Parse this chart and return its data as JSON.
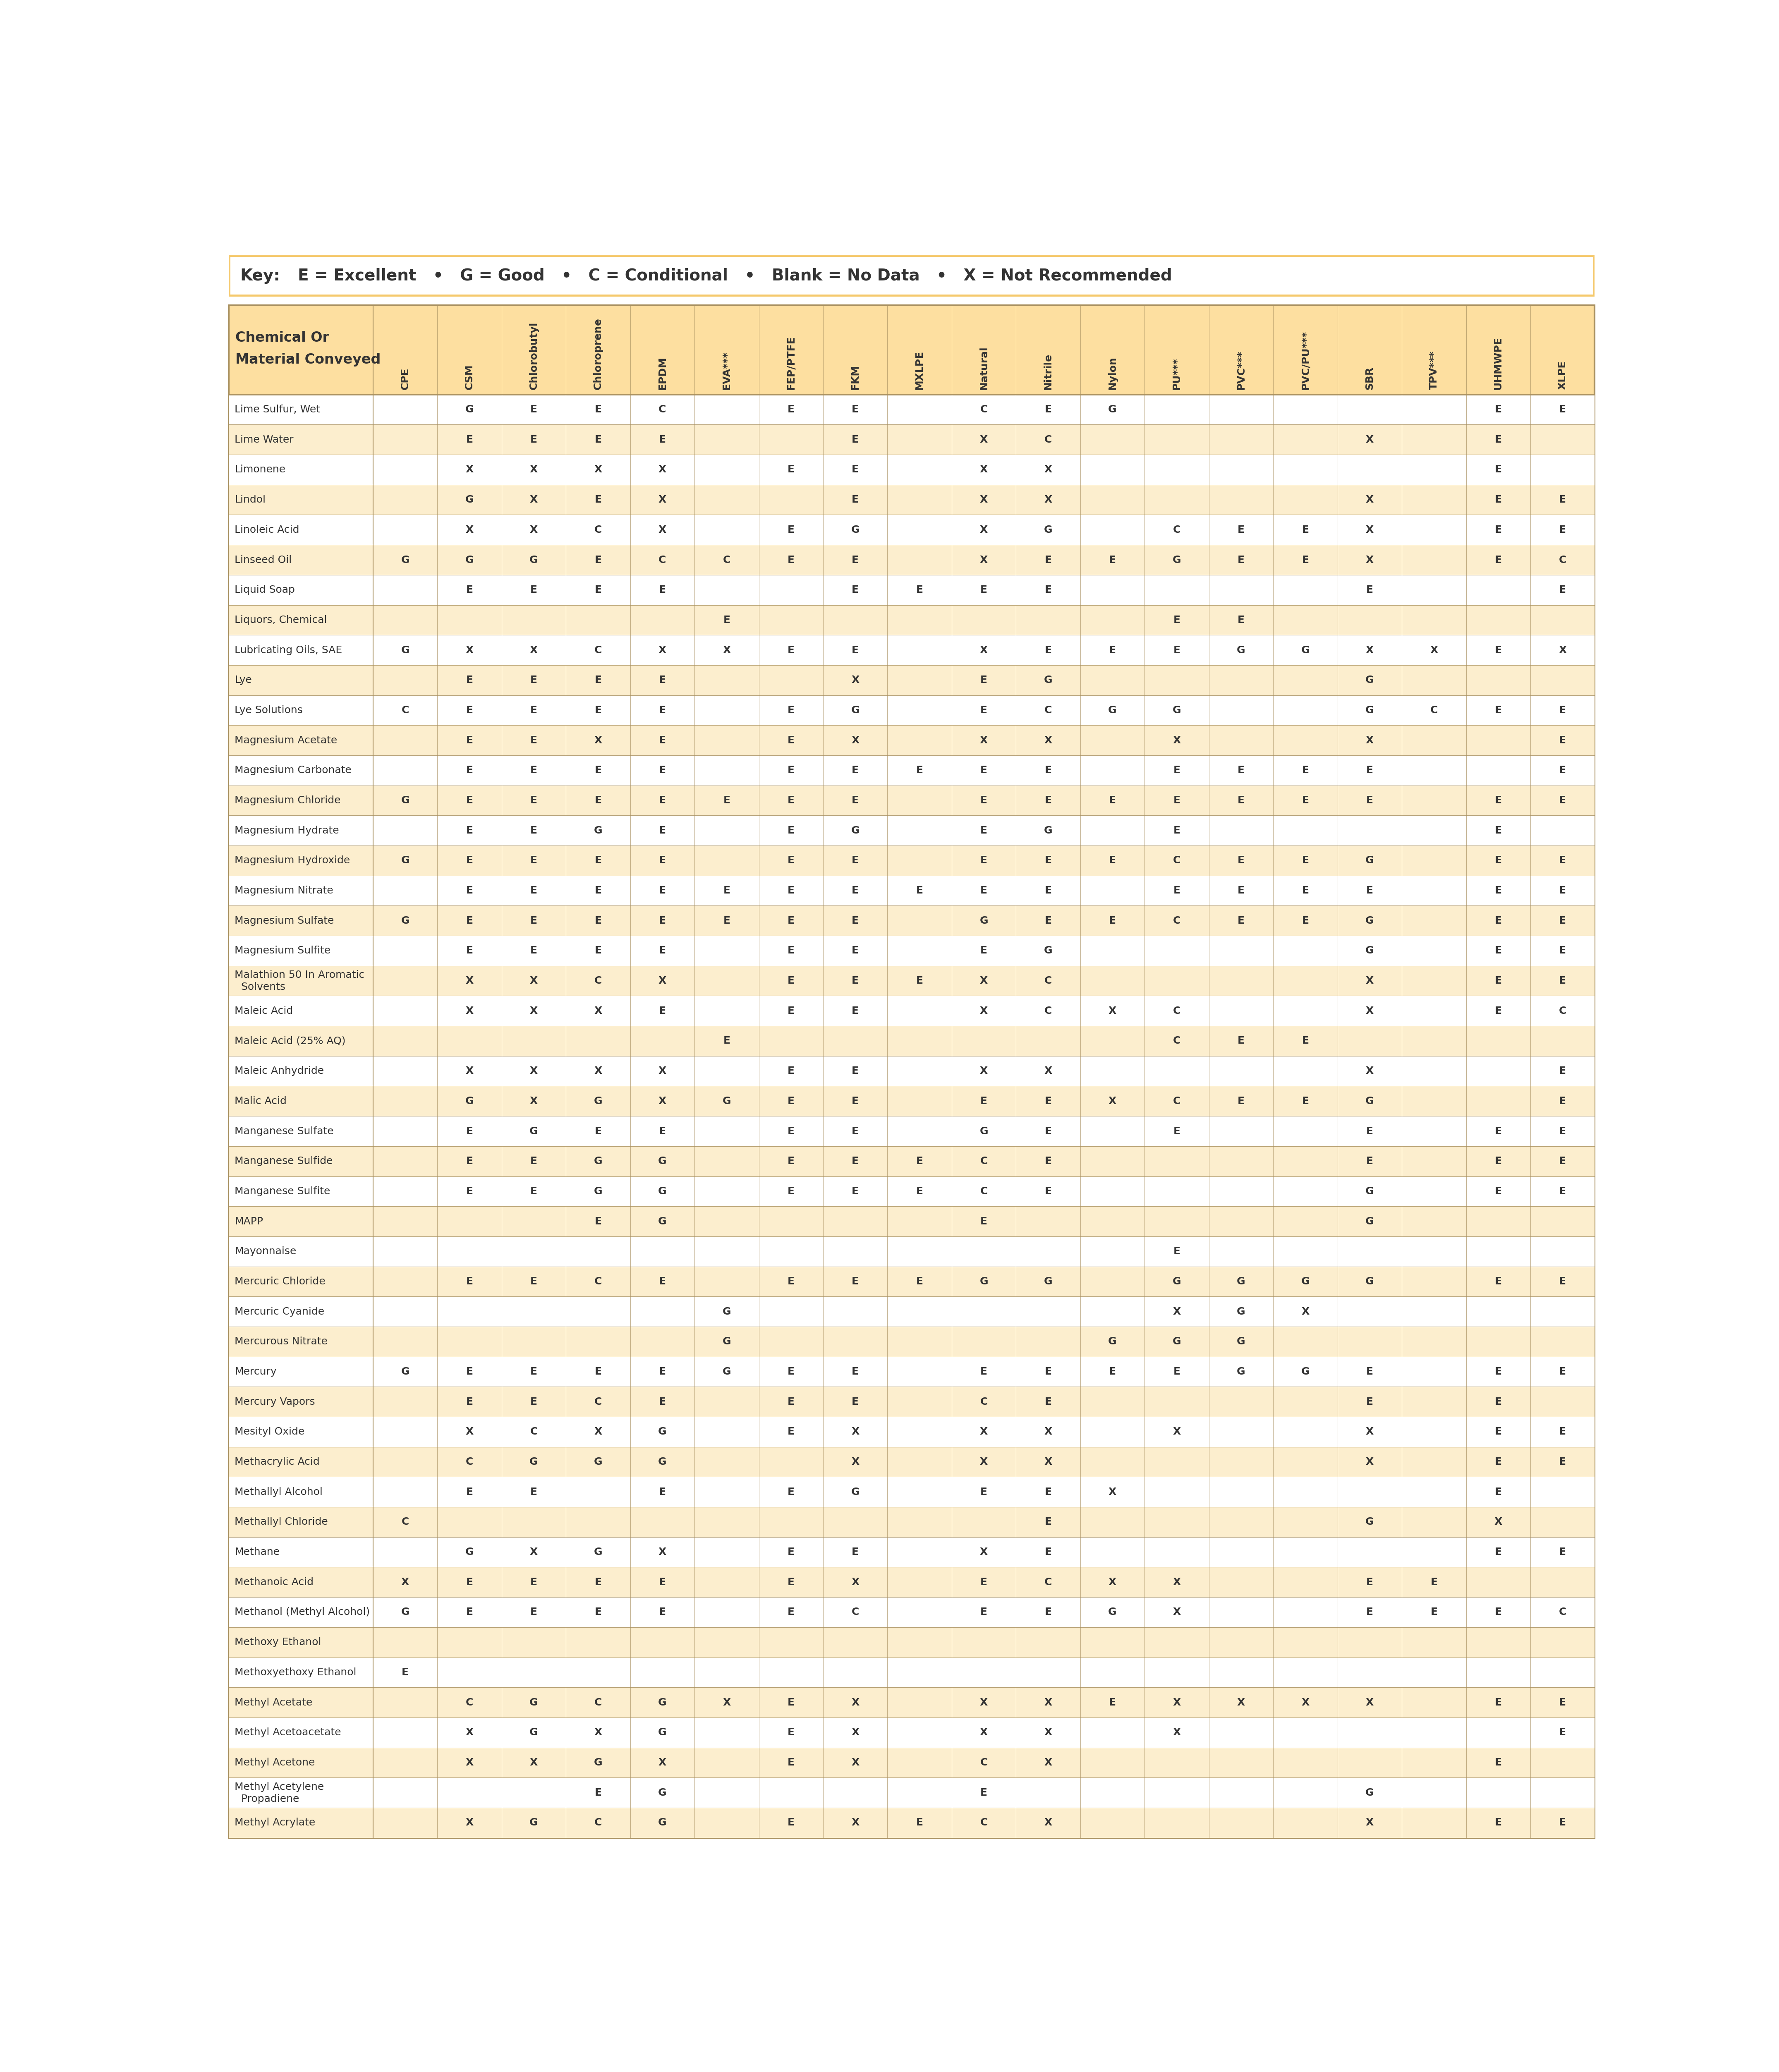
{
  "key_text_bold": "Key:",
  "key_text_rest": "  E = Excellent   •   G = Good   •   C = Conditional   •   Blank = No Data   •   X = Not Recommended",
  "header_col_line1": "Chemical Or",
  "header_col_line2": "Material Conveyed",
  "columns": [
    "CPE",
    "CSM",
    "Chlorobutyl",
    "Chloroprene",
    "EPDM",
    "EVA***",
    "FEP/PTFE",
    "FKM",
    "MXLPE",
    "Natural",
    "Nitrile",
    "Nylon",
    "PU***",
    "PVC***",
    "PVC/PU***",
    "SBR",
    "TPV***",
    "UHMWPE",
    "XLPE"
  ],
  "rows": [
    {
      "chemical": "Lime Sulfur, Wet",
      "data": [
        "",
        "G",
        "E",
        "E",
        "C",
        "",
        "E",
        "E",
        "",
        "C",
        "E",
        "G",
        "",
        "",
        "",
        "",
        "",
        "E",
        "E"
      ]
    },
    {
      "chemical": "Lime Water",
      "data": [
        "",
        "E",
        "E",
        "E",
        "E",
        "",
        "",
        "E",
        "",
        "X",
        "C",
        "",
        "",
        "",
        "",
        "X",
        "",
        "E",
        ""
      ]
    },
    {
      "chemical": "Limonene",
      "data": [
        "",
        "X",
        "X",
        "X",
        "X",
        "",
        "E",
        "E",
        "",
        "X",
        "X",
        "",
        "",
        "",
        "",
        "",
        "",
        "E",
        ""
      ]
    },
    {
      "chemical": "Lindol",
      "data": [
        "",
        "G",
        "X",
        "E",
        "X",
        "",
        "",
        "E",
        "",
        "X",
        "X",
        "",
        "",
        "",
        "",
        "X",
        "",
        "E",
        "E"
      ]
    },
    {
      "chemical": "Linoleic Acid",
      "data": [
        "",
        "X",
        "X",
        "C",
        "X",
        "",
        "E",
        "G",
        "",
        "X",
        "G",
        "",
        "C",
        "E",
        "E",
        "X",
        "",
        "E",
        "E"
      ]
    },
    {
      "chemical": "Linseed Oil",
      "data": [
        "G",
        "G",
        "G",
        "E",
        "C",
        "C",
        "E",
        "E",
        "",
        "X",
        "E",
        "E",
        "G",
        "E",
        "E",
        "X",
        "",
        "E",
        "C"
      ]
    },
    {
      "chemical": "Liquid Soap",
      "data": [
        "",
        "E",
        "E",
        "E",
        "E",
        "",
        "",
        "E",
        "E",
        "E",
        "E",
        "",
        "",
        "",
        "",
        "E",
        "",
        "",
        "E"
      ]
    },
    {
      "chemical": "Liquors, Chemical",
      "data": [
        "",
        "",
        "",
        "",
        "",
        "E",
        "",
        "",
        "",
        "",
        "",
        "",
        "E",
        "E",
        "",
        "",
        "",
        "",
        ""
      ]
    },
    {
      "chemical": "Lubricating Oils, SAE",
      "data": [
        "G",
        "X",
        "X",
        "C",
        "X",
        "X",
        "E",
        "E",
        "",
        "X",
        "E",
        "E",
        "E",
        "G",
        "G",
        "X",
        "X",
        "E",
        "X"
      ]
    },
    {
      "chemical": "Lye",
      "data": [
        "",
        "E",
        "E",
        "E",
        "E",
        "",
        "",
        "X",
        "",
        "E",
        "G",
        "",
        "",
        "",
        "",
        "G",
        "",
        "",
        ""
      ]
    },
    {
      "chemical": "Lye Solutions",
      "data": [
        "C",
        "E",
        "E",
        "E",
        "E",
        "",
        "E",
        "G",
        "",
        "E",
        "C",
        "G",
        "G",
        "",
        "",
        "G",
        "C",
        "E",
        "E"
      ]
    },
    {
      "chemical": "Magnesium Acetate",
      "data": [
        "",
        "E",
        "E",
        "X",
        "E",
        "",
        "E",
        "X",
        "",
        "X",
        "X",
        "",
        "X",
        "",
        "",
        "X",
        "",
        "",
        "E"
      ]
    },
    {
      "chemical": "Magnesium Carbonate",
      "data": [
        "",
        "E",
        "E",
        "E",
        "E",
        "",
        "E",
        "E",
        "E",
        "E",
        "E",
        "",
        "E",
        "E",
        "E",
        "E",
        "",
        "",
        "E"
      ]
    },
    {
      "chemical": "Magnesium Chloride",
      "data": [
        "G",
        "E",
        "E",
        "E",
        "E",
        "E",
        "E",
        "E",
        "",
        "E",
        "E",
        "E",
        "E",
        "E",
        "E",
        "E",
        "",
        "E",
        "E"
      ]
    },
    {
      "chemical": "Magnesium Hydrate",
      "data": [
        "",
        "E",
        "E",
        "G",
        "E",
        "",
        "E",
        "G",
        "",
        "E",
        "G",
        "",
        "E",
        "",
        "",
        "",
        "",
        "E",
        ""
      ]
    },
    {
      "chemical": "Magnesium Hydroxide",
      "data": [
        "G",
        "E",
        "E",
        "E",
        "E",
        "",
        "E",
        "E",
        "",
        "E",
        "E",
        "E",
        "C",
        "E",
        "E",
        "G",
        "",
        "E",
        "E"
      ]
    },
    {
      "chemical": "Magnesium Nitrate",
      "data": [
        "",
        "E",
        "E",
        "E",
        "E",
        "E",
        "E",
        "E",
        "E",
        "E",
        "E",
        "",
        "E",
        "E",
        "E",
        "E",
        "",
        "E",
        "E"
      ]
    },
    {
      "chemical": "Magnesium Sulfate",
      "data": [
        "G",
        "E",
        "E",
        "E",
        "E",
        "E",
        "E",
        "E",
        "",
        "G",
        "E",
        "E",
        "C",
        "E",
        "E",
        "G",
        "",
        "E",
        "E"
      ]
    },
    {
      "chemical": "Magnesium Sulfite",
      "data": [
        "",
        "E",
        "E",
        "E",
        "E",
        "",
        "E",
        "E",
        "",
        "E",
        "G",
        "",
        "",
        "",
        "",
        "G",
        "",
        "E",
        "E"
      ]
    },
    {
      "chemical": "Malathion 50 In Aromatic\n  Solvents",
      "multiline": true,
      "data": [
        "",
        "X",
        "X",
        "C",
        "X",
        "",
        "E",
        "E",
        "E",
        "X",
        "C",
        "",
        "",
        "",
        "",
        "X",
        "",
        "E",
        "E"
      ]
    },
    {
      "chemical": "Maleic Acid",
      "data": [
        "",
        "X",
        "X",
        "X",
        "E",
        "",
        "E",
        "E",
        "",
        "X",
        "C",
        "X",
        "C",
        "",
        "",
        "X",
        "",
        "E",
        "C"
      ]
    },
    {
      "chemical": "Maleic Acid (25% AQ)",
      "data": [
        "",
        "",
        "",
        "",
        "",
        "E",
        "",
        "",
        "",
        "",
        "",
        "",
        "C",
        "E",
        "E",
        "",
        "",
        "",
        ""
      ]
    },
    {
      "chemical": "Maleic Anhydride",
      "data": [
        "",
        "X",
        "X",
        "X",
        "X",
        "",
        "E",
        "E",
        "",
        "X",
        "X",
        "",
        "",
        "",
        "",
        "X",
        "",
        "",
        "E"
      ]
    },
    {
      "chemical": "Malic Acid",
      "data": [
        "",
        "G",
        "X",
        "G",
        "X",
        "G",
        "E",
        "E",
        "",
        "E",
        "E",
        "X",
        "C",
        "E",
        "E",
        "G",
        "",
        "",
        "E"
      ]
    },
    {
      "chemical": "Manganese Sulfate",
      "data": [
        "",
        "E",
        "G",
        "E",
        "E",
        "",
        "E",
        "E",
        "",
        "G",
        "E",
        "",
        "E",
        "",
        "",
        "E",
        "",
        "E",
        "E"
      ]
    },
    {
      "chemical": "Manganese Sulfide",
      "data": [
        "",
        "E",
        "E",
        "G",
        "G",
        "",
        "E",
        "E",
        "E",
        "C",
        "E",
        "",
        "",
        "",
        "",
        "E",
        "",
        "E",
        "E"
      ]
    },
    {
      "chemical": "Manganese Sulfite",
      "data": [
        "",
        "E",
        "E",
        "G",
        "G",
        "",
        "E",
        "E",
        "E",
        "C",
        "E",
        "",
        "",
        "",
        "",
        "G",
        "",
        "E",
        "E"
      ]
    },
    {
      "chemical": "MAPP",
      "data": [
        "",
        "",
        "",
        "E",
        "G",
        "",
        "",
        "",
        "",
        "E",
        "",
        "",
        "",
        "",
        "",
        "G",
        "",
        "",
        ""
      ]
    },
    {
      "chemical": "Mayonnaise",
      "data": [
        "",
        "",
        "",
        "",
        "",
        "",
        "",
        "",
        "",
        "",
        "",
        "",
        "E",
        "",
        "",
        "",
        "",
        "",
        ""
      ]
    },
    {
      "chemical": "Mercuric Chloride",
      "data": [
        "",
        "E",
        "E",
        "C",
        "E",
        "",
        "E",
        "E",
        "E",
        "G",
        "G",
        "",
        "G",
        "G",
        "G",
        "G",
        "",
        "E",
        "E"
      ]
    },
    {
      "chemical": "Mercuric Cyanide",
      "data": [
        "",
        "",
        "",
        "",
        "",
        "G",
        "",
        "",
        "",
        "",
        "",
        "",
        "X",
        "G",
        "X",
        "",
        "",
        "",
        ""
      ]
    },
    {
      "chemical": "Mercurous Nitrate",
      "data": [
        "",
        "",
        "",
        "",
        "",
        "G",
        "",
        "",
        "",
        "",
        "",
        "G",
        "G",
        "G",
        "",
        "",
        "",
        "",
        ""
      ]
    },
    {
      "chemical": "Mercury",
      "data": [
        "G",
        "E",
        "E",
        "E",
        "E",
        "G",
        "E",
        "E",
        "",
        "E",
        "E",
        "E",
        "E",
        "G",
        "G",
        "E",
        "",
        "E",
        "E"
      ]
    },
    {
      "chemical": "Mercury Vapors",
      "data": [
        "",
        "E",
        "E",
        "C",
        "E",
        "",
        "E",
        "E",
        "",
        "C",
        "E",
        "",
        "",
        "",
        "",
        "E",
        "",
        "E",
        ""
      ]
    },
    {
      "chemical": "Mesityl Oxide",
      "data": [
        "",
        "X",
        "C",
        "X",
        "G",
        "",
        "E",
        "X",
        "",
        "X",
        "X",
        "",
        "X",
        "",
        "",
        "X",
        "",
        "E",
        "E"
      ]
    },
    {
      "chemical": "Methacrylic Acid",
      "data": [
        "",
        "C",
        "G",
        "G",
        "G",
        "",
        "",
        "X",
        "",
        "X",
        "X",
        "",
        "",
        "",
        "",
        "X",
        "",
        "E",
        "E"
      ]
    },
    {
      "chemical": "Methallyl Alcohol",
      "data": [
        "",
        "E",
        "E",
        "",
        "E",
        "",
        "E",
        "G",
        "",
        "E",
        "E",
        "X",
        "",
        "",
        "",
        "",
        "",
        "E",
        ""
      ]
    },
    {
      "chemical": "Methallyl Chloride",
      "data": [
        "C",
        "",
        "",
        "",
        "",
        "",
        "",
        "",
        "",
        "",
        "E",
        "",
        "",
        "",
        "",
        "G",
        "",
        "X",
        ""
      ]
    },
    {
      "chemical": "Methane",
      "data": [
        "",
        "G",
        "X",
        "G",
        "X",
        "",
        "E",
        "E",
        "",
        "X",
        "E",
        "",
        "",
        "",
        "",
        "",
        "",
        "E",
        "E"
      ]
    },
    {
      "chemical": "Methanoic Acid",
      "data": [
        "X",
        "E",
        "E",
        "E",
        "E",
        "",
        "E",
        "X",
        "",
        "E",
        "C",
        "X",
        "X",
        "",
        "",
        "E",
        "E",
        "",
        ""
      ]
    },
    {
      "chemical": "Methanol (Methyl Alcohol)",
      "data": [
        "G",
        "E",
        "E",
        "E",
        "E",
        "",
        "E",
        "C",
        "",
        "E",
        "E",
        "G",
        "X",
        "",
        "",
        "E",
        "E",
        "E",
        "C"
      ]
    },
    {
      "chemical": "Methoxy Ethanol",
      "data": [
        "",
        "",
        "",
        "",
        "",
        "",
        "",
        "",
        "",
        "",
        "",
        "",
        "",
        "",
        "",
        "",
        "",
        "",
        ""
      ]
    },
    {
      "chemical": "Methoxyethoxy Ethanol",
      "data": [
        "E",
        "",
        "",
        "",
        "",
        "",
        "",
        "",
        "",
        "",
        "",
        "",
        "",
        "",
        "",
        "",
        "",
        "",
        ""
      ]
    },
    {
      "chemical": "Methyl Acetate",
      "data": [
        "",
        "C",
        "G",
        "C",
        "G",
        "X",
        "E",
        "X",
        "",
        "X",
        "X",
        "E",
        "X",
        "X",
        "X",
        "X",
        "",
        "E",
        "E"
      ]
    },
    {
      "chemical": "Methyl Acetoacetate",
      "data": [
        "",
        "X",
        "G",
        "X",
        "G",
        "",
        "E",
        "X",
        "",
        "X",
        "X",
        "",
        "X",
        "",
        "",
        "",
        "",
        "",
        "E"
      ]
    },
    {
      "chemical": "Methyl Acetone",
      "data": [
        "",
        "X",
        "X",
        "G",
        "X",
        "",
        "E",
        "X",
        "",
        "C",
        "X",
        "",
        "",
        "",
        "",
        "",
        "",
        "E",
        ""
      ]
    },
    {
      "chemical": "Methyl Acetylene\n  Propadiene",
      "multiline": true,
      "data": [
        "",
        "",
        "",
        "E",
        "G",
        "",
        "",
        "",
        "",
        "E",
        "",
        "",
        "",
        "",
        "",
        "G",
        "",
        "",
        ""
      ]
    },
    {
      "chemical": "Methyl Acrylate",
      "data": [
        "",
        "X",
        "G",
        "C",
        "G",
        "",
        "E",
        "X",
        "E",
        "C",
        "X",
        "",
        "",
        "",
        "",
        "X",
        "",
        "E",
        "E"
      ]
    }
  ],
  "bg_color_key_border": "#F5C96D",
  "bg_color_key": "#FFFFFF",
  "bg_color_header": "#FDDFA0",
  "bg_color_row_odd": "#FFFFFF",
  "bg_color_row_even": "#FCEECE",
  "border_color_table": "#A89060",
  "border_color_key": "#F5C96D",
  "text_color": "#333333",
  "key_fontsize": 28,
  "header_name_fontsize": 24,
  "col_header_fontsize": 18,
  "data_fontsize": 18
}
